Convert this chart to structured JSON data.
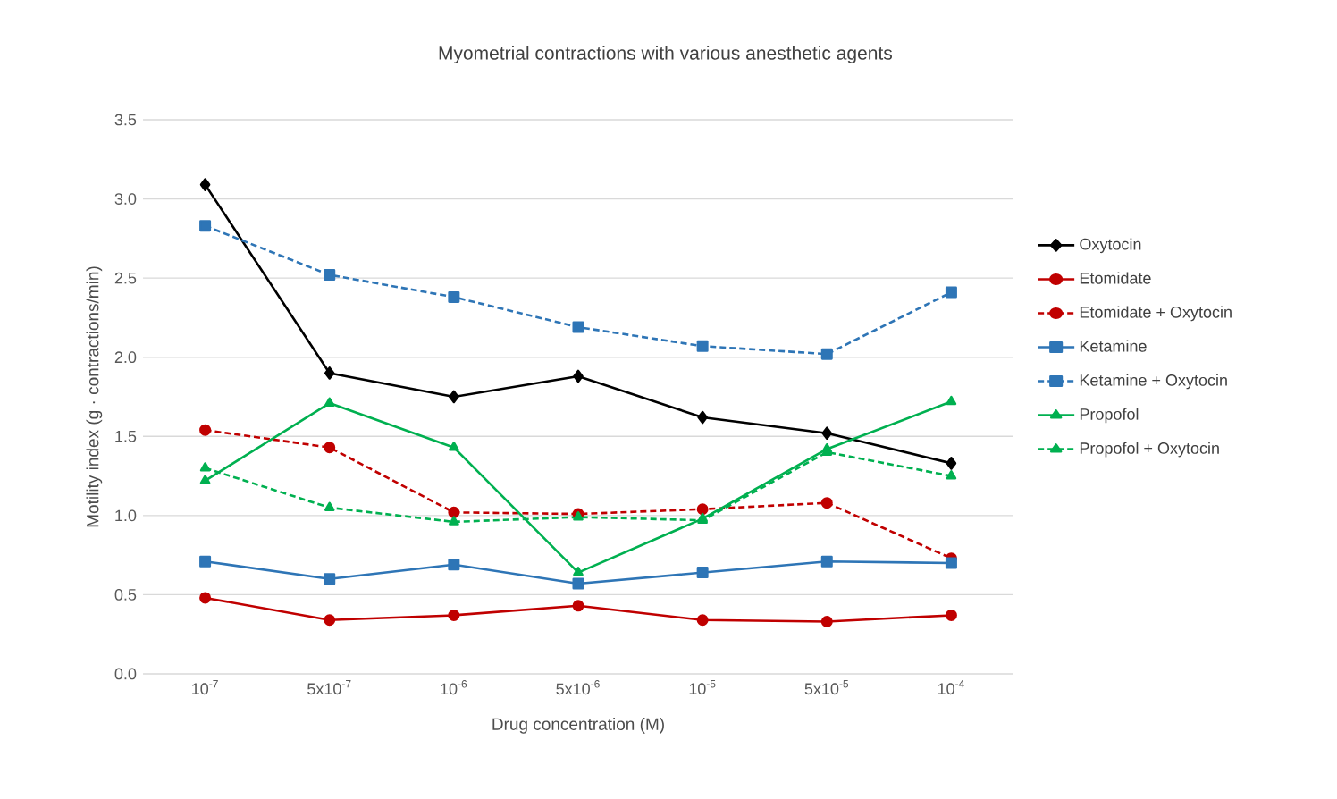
{
  "chart_data": {
    "type": "line",
    "title": "Myometrial contractions with various anesthetic agents",
    "xlabel": "Drug concentration (M)",
    "ylabel": "Motility index (g · contractions/min)",
    "categories": [
      "10$^{-7}$",
      "5x10$^{-7}$",
      "10$^{-6}$",
      "5x10$^{-6}$",
      "10$^{-5}$",
      "5x10$^{-5}$",
      "10$^{-4}$"
    ],
    "series": [
      {
        "name": "Oxytocin",
        "color": "#000000",
        "marker": "diamond",
        "line_style": "solid",
        "values": [
          3.09,
          1.9,
          1.75,
          1.88,
          1.62,
          1.52,
          1.33
        ]
      },
      {
        "name": "Etomidate",
        "color": "#c00000",
        "marker": "circle",
        "line_style": "solid",
        "values": [
          0.48,
          0.34,
          0.37,
          0.43,
          0.34,
          0.33,
          0.37
        ]
      },
      {
        "name": "Etomidate + Oxytocin",
        "color": "#c00000",
        "marker": "circle",
        "line_style": "dashed",
        "values": [
          1.54,
          1.43,
          1.02,
          1.01,
          1.04,
          1.08,
          0.73
        ]
      },
      {
        "name": "Ketamine",
        "color": "#2e75b6",
        "marker": "square",
        "line_style": "solid",
        "values": [
          0.71,
          0.6,
          0.69,
          0.57,
          0.64,
          0.71,
          0.7
        ]
      },
      {
        "name": "Ketamine + Oxytocin",
        "color": "#2e75b6",
        "marker": "square",
        "line_style": "dashed",
        "values": [
          2.83,
          2.52,
          2.38,
          2.19,
          2.07,
          2.02,
          2.41
        ]
      },
      {
        "name": "Propofol",
        "color": "#00b050",
        "marker": "triangle",
        "line_style": "solid",
        "values": [
          1.22,
          1.71,
          1.43,
          0.64,
          0.98,
          1.42,
          1.72
        ]
      },
      {
        "name": "Propofol + Oxytocin",
        "color": "#00b050",
        "marker": "triangle",
        "line_style": "dashed",
        "values": [
          1.3,
          1.05,
          0.96,
          0.99,
          0.97,
          1.4,
          1.25
        ]
      }
    ],
    "ylim": [
      0,
      3.5
    ],
    "yticks": [
      {
        "value": 0,
        "label": "0.0"
      },
      {
        "value": 0.5,
        "label": "0.5"
      },
      {
        "value": 1,
        "label": "1.0"
      },
      {
        "value": 1.5,
        "label": "1.5"
      },
      {
        "value": 2,
        "label": "2.0"
      },
      {
        "value": 2.5,
        "label": "2.5"
      },
      {
        "value": 3,
        "label": "3.0"
      },
      {
        "value": 3.5,
        "label": "3.5"
      }
    ],
    "grid": "y",
    "legend": "right"
  }
}
